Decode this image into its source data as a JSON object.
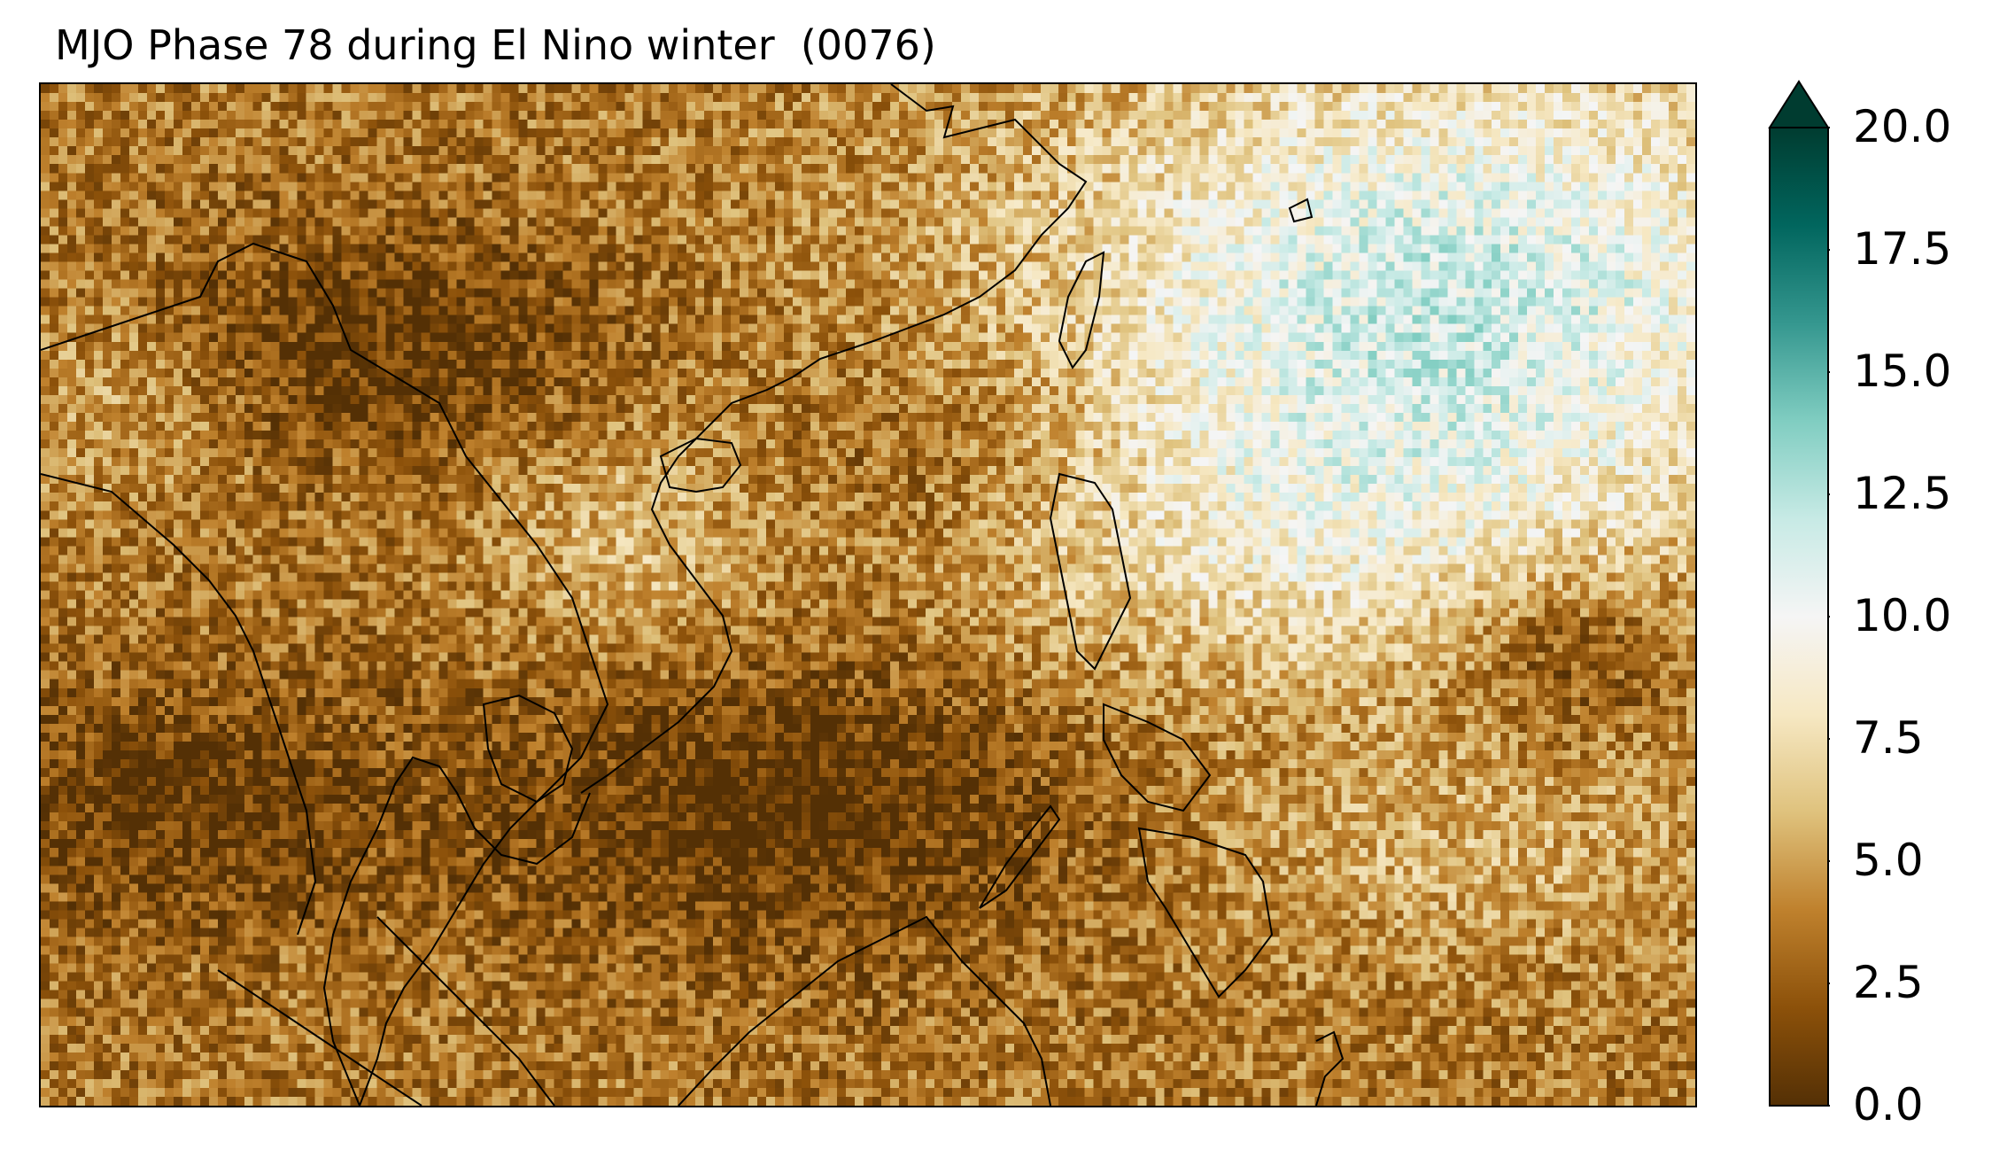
{
  "title": "MJO Phase 78 during El Nino winter  (0076)",
  "colorbar": {
    "ticks": [
      "0.0",
      "2.5",
      "5.0",
      "7.5",
      "10.0",
      "12.5",
      "15.0",
      "17.5",
      "20.0"
    ],
    "min": 0,
    "max": 20,
    "extend": "max",
    "colormap": "BrBG",
    "colors": [
      "#543005",
      "#8c510a",
      "#bf812d",
      "#dfc27d",
      "#f6e8c3",
      "#f5f5f5",
      "#c7eae5",
      "#80cdc1",
      "#35978f",
      "#01665e",
      "#003c30"
    ]
  }
}
